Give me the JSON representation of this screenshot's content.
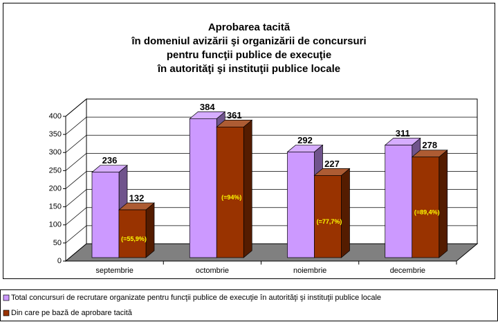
{
  "chart_data": {
    "type": "bar3d",
    "title": [
      "Aprobarea tacită",
      "în domeniul avizării şi organizării de concursuri",
      "pentru funcţii publice de execuţie",
      "în autorităţi şi instituţii publice locale"
    ],
    "categories": [
      "septembrie",
      "octombrie",
      "noiembrie",
      "decembrie"
    ],
    "series": [
      {
        "name": "Total concursuri de recrutare organizate pentru funcţii publice de execuţie în autorităţi şi instituţii publice locale",
        "color": "#cc99ff",
        "values": [
          236,
          384,
          292,
          311
        ]
      },
      {
        "name": "Din care pe bază de aprobare tacită",
        "color": "#993300",
        "values": [
          132,
          361,
          227,
          278
        ],
        "annotations": [
          "(=55,9%)",
          "(=94%)",
          "(=77,7%)",
          "(=89,4%)"
        ]
      }
    ],
    "ylim": [
      0,
      400
    ],
    "yticks": [
      0,
      50,
      100,
      150,
      200,
      250,
      300,
      350,
      400
    ],
    "grid": true,
    "legend": "bottom"
  }
}
